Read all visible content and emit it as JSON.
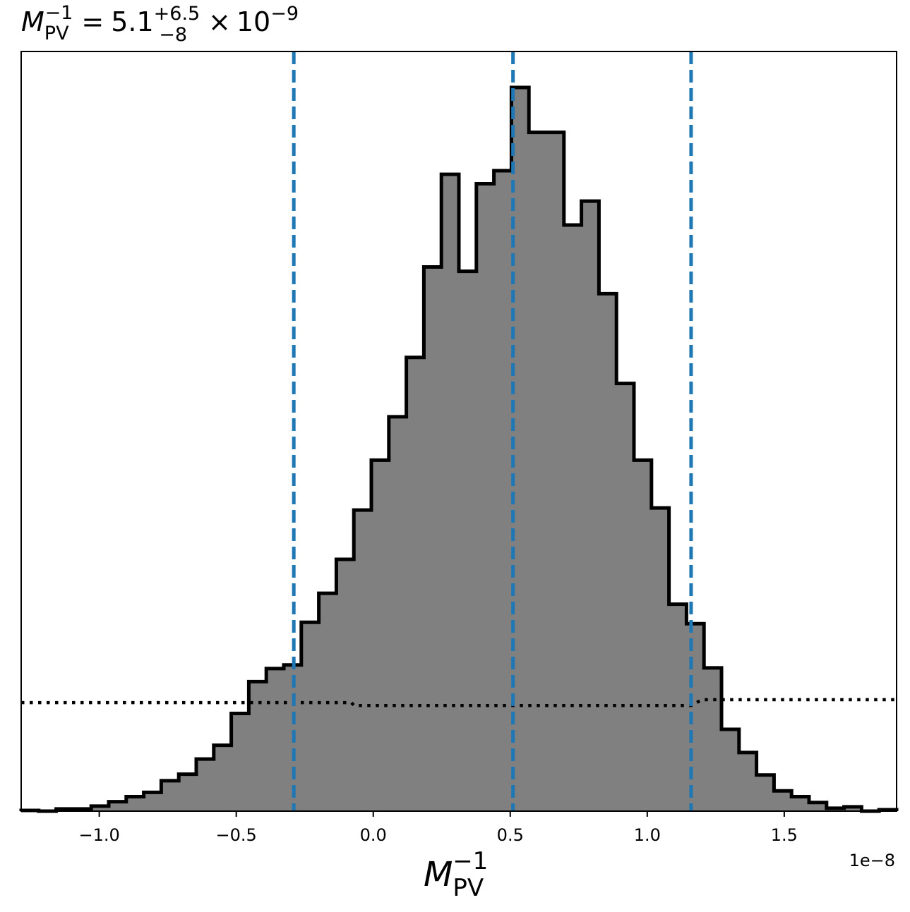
{
  "chart_data": {
    "type": "histogram",
    "title": {
      "symbol": "M",
      "subscript": "PV",
      "superscript": "−1",
      "equals": "=",
      "median": "5.1",
      "plus": "+6.5",
      "minus": "−8",
      "times": "×",
      "base": "10",
      "exponent": "−9"
    },
    "xlabel": {
      "symbol": "M",
      "subscript": "PV",
      "superscript": "−1"
    },
    "offset_text": "1e−8",
    "x_scale_factor": 1e-08,
    "xlim": [
      -1.285,
      1.91
    ],
    "ylim": [
      0,
      1
    ],
    "xticks": [
      -1.0,
      -0.5,
      0.0,
      0.5,
      1.0,
      1.5
    ],
    "xtick_labels": [
      "−1.0",
      "−0.5",
      "0.0",
      "0.5",
      "1.0",
      "1.5"
    ],
    "bin_start": -1.285,
    "bin_width": 0.0639,
    "bin_heights": [
      0.001,
      0.0,
      0.003,
      0.003,
      0.007,
      0.013,
      0.02,
      0.026,
      0.042,
      0.051,
      0.072,
      0.091,
      0.135,
      0.179,
      0.197,
      0.202,
      0.261,
      0.301,
      0.348,
      0.416,
      0.485,
      0.545,
      0.627,
      0.752,
      0.88,
      0.746,
      0.867,
      0.885,
      1.0,
      0.938,
      0.938,
      0.81,
      0.843,
      0.715,
      0.591,
      0.485,
      0.419,
      0.286,
      0.259,
      0.198,
      0.113,
      0.081,
      0.05,
      0.028,
      0.02,
      0.012,
      0.004,
      0.006,
      0.0,
      0.002
    ],
    "quantile_lines": [
      -0.29,
      0.51,
      1.16
    ],
    "quantile_line_color": "#1f77b4",
    "fill_color": "#808080",
    "edge_color": "#000000",
    "prior_dotted": [
      {
        "x": -1.285,
        "y": 0.15
      },
      {
        "x": -0.08,
        "y": 0.15
      },
      {
        "x": -0.07,
        "y": 0.146
      },
      {
        "x": 1.16,
        "y": 0.146
      },
      {
        "x": 1.2,
        "y": 0.154
      },
      {
        "x": 1.91,
        "y": 0.154
      }
    ],
    "grid": false,
    "legend": "none"
  }
}
